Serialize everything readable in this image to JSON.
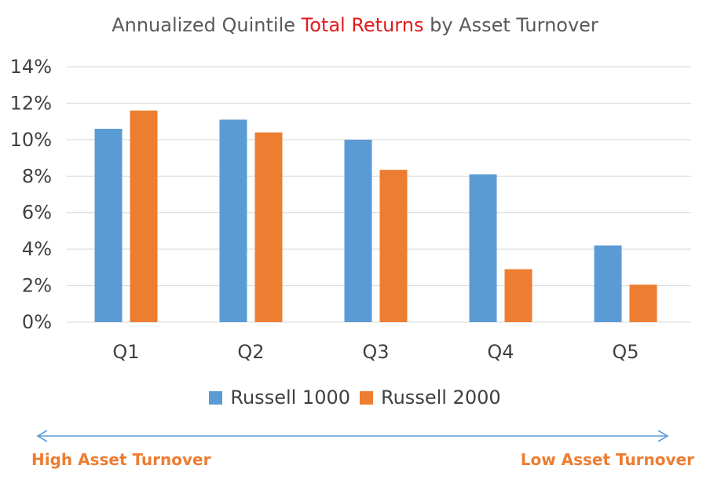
{
  "chart_data": {
    "type": "bar",
    "title_prefix": "Annualized Quintile ",
    "title_highlight": "Total Returns",
    "title_suffix": " by Asset Turnover",
    "categories": [
      "Q1",
      "Q2",
      "Q3",
      "Q4",
      "Q5"
    ],
    "series": [
      {
        "name": "Russell 1000",
        "values": [
          10.6,
          11.1,
          10.0,
          8.1,
          4.2
        ]
      },
      {
        "name": "Russell 2000",
        "values": [
          11.6,
          10.4,
          8.35,
          2.9,
          2.05
        ]
      }
    ],
    "ylim": [
      0,
      14
    ],
    "yticks": [
      "0%",
      "2%",
      "4%",
      "6%",
      "8%",
      "10%",
      "12%",
      "14%"
    ],
    "grid": true,
    "legend_position": "bottom"
  },
  "colors": {
    "russell1000": "#5b9bd5",
    "russell2000": "#ed7d31",
    "title_highlight": "#e31a1c",
    "grid": "#d9d9d9",
    "arrow": "#5b9bd5",
    "footer": "#ed7d31"
  },
  "footer": {
    "left_label": "High Asset Turnover",
    "right_label": "Low Asset Turnover"
  }
}
